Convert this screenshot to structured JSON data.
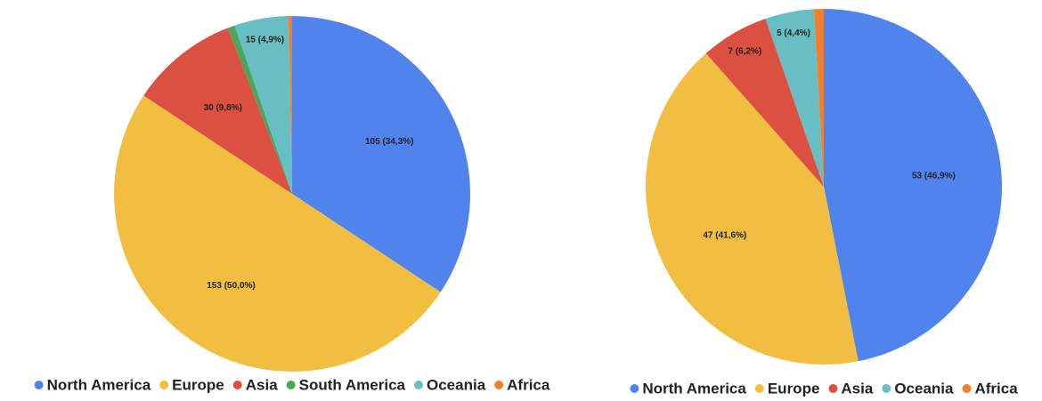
{
  "chart_data": [
    {
      "type": "pie",
      "categories": [
        "North America",
        "Europe",
        "Asia",
        "South America",
        "Oceania",
        "Africa"
      ],
      "values": [
        105,
        153,
        30,
        2,
        15,
        1
      ],
      "value_labels": [
        "105 (34,3%)",
        "153 (50,0%)",
        "30 (9,8%)",
        null,
        "15 (4,9%)",
        null
      ],
      "colors": [
        "#5083ec",
        "#f1be42",
        "#db5040",
        "#4aa65a",
        "#67bfc3",
        "#f07f32"
      ]
    },
    {
      "type": "pie",
      "categories": [
        "North America",
        "Europe",
        "Asia",
        "Oceania",
        "Africa"
      ],
      "values": [
        53,
        47,
        7,
        5,
        1
      ],
      "value_labels": [
        "53 (46,9%)",
        "47 (41,6%)",
        "7 (6,2%)",
        "5 (4,4%)",
        null
      ],
      "colors": [
        "#5083ec",
        "#f1be42",
        "#db5040",
        "#67bfc3",
        "#f07f32"
      ]
    }
  ]
}
